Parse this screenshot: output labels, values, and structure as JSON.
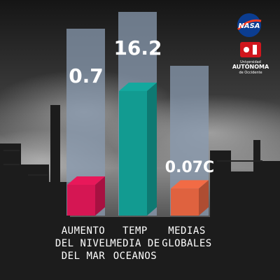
{
  "chart_data": {
    "type": "bar",
    "categories": [
      [
        "AUMENTO",
        "DEL NIVEL",
        "DEL MAR"
      ],
      [
        "TEMP",
        "MEDIA DE",
        "OCEANOS"
      ],
      [
        "MEDIAS",
        "GLOBALES"
      ]
    ],
    "values": [
      0.7,
      16.2,
      0.07
    ],
    "value_labels": [
      "0.7",
      "16.2",
      "0.07C"
    ],
    "colors": [
      "#e8185a",
      "#14a89e",
      "#f26b45"
    ]
  },
  "logos": {
    "nasa": {
      "text": "NASA"
    },
    "university": {
      "line1": "Universidad",
      "line2": "AUTÓNOMA",
      "line3": "de Occidente",
      "color": "#d0161d"
    }
  }
}
